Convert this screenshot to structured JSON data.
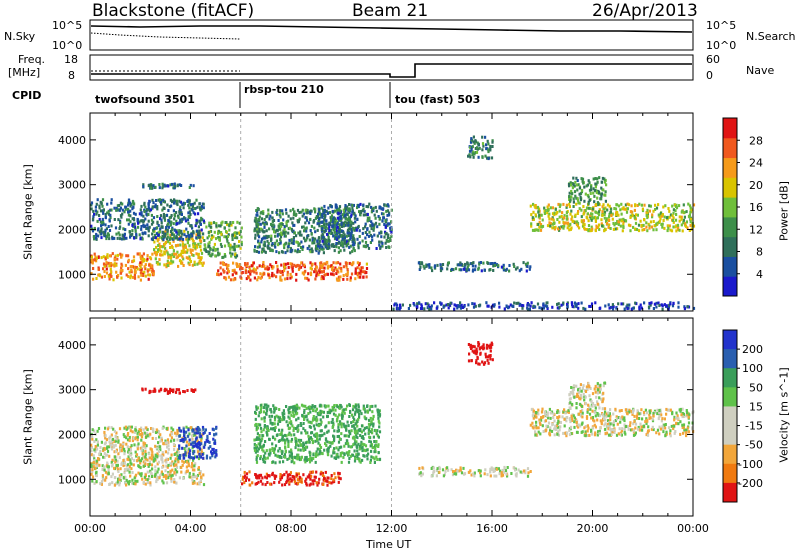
{
  "header": {
    "station": "Blackstone (fitACF)",
    "beam": "Beam 21",
    "date": "26/Apr/2013"
  },
  "panels": {
    "nsky_label": "N.Sky",
    "nsearch_label": "N.Search",
    "noise_ticks_left": [
      "10^5",
      "10^0"
    ],
    "noise_ticks_right": [
      "10^5",
      "10^0"
    ],
    "freq_label": "Freq.",
    "freq_unit": "[MHz]",
    "freq_ticks": [
      "18",
      "8"
    ],
    "nave_label": "Nave",
    "nave_ticks": [
      "60",
      "0"
    ],
    "cpid_label": "CPID"
  },
  "cpid": [
    {
      "label": "twofsound 3501",
      "start_h": 0.0,
      "end_h": 6.0
    },
    {
      "label": "rbsp-tou 210",
      "start_h": 6.0,
      "end_h": 12.0
    },
    {
      "label": "tou (fast) 503",
      "start_h": 12.0,
      "end_h": 24.0
    }
  ],
  "colors": {
    "power_scale": [
      "#1a1acc",
      "#1a4fa0",
      "#2f6f5a",
      "#3d8f4a",
      "#6fbf3a",
      "#d9c400",
      "#f59a1a",
      "#f0581e",
      "#e01414"
    ],
    "velocity_scale": [
      "#e01414",
      "#f07a10",
      "#f2a63a",
      "#cfcfc0",
      "#cfcfc0",
      "#5fc24a",
      "#3a9e5a",
      "#2a5fb0",
      "#2233cc"
    ]
  },
  "chart_data": [
    {
      "type": "heatmap",
      "title": "Power",
      "ylabel": "Slant Range [km]",
      "y_ticks": [
        "1000",
        "2000",
        "3000",
        "4000"
      ],
      "y_range": [
        180,
        4600
      ],
      "x_range": [
        0,
        24
      ],
      "colorbar_label": "Power [dB]",
      "colorbar_ticks": [
        "4",
        "8",
        "12",
        "16",
        "20",
        "24",
        "28"
      ],
      "colorbar_range": [
        0,
        32
      ],
      "regions": [
        {
          "t": [
            0.0,
            2.5
          ],
          "r": [
            900,
            1500
          ],
          "value": 24
        },
        {
          "t": [
            2.5,
            4.5
          ],
          "r": [
            1200,
            2000
          ],
          "value": 20
        },
        {
          "t": [
            4.5,
            6.0
          ],
          "r": [
            1400,
            2200
          ],
          "value": 14
        },
        {
          "t": [
            0.0,
            4.5
          ],
          "r": [
            1800,
            2700
          ],
          "value": 8
        },
        {
          "t": [
            2.0,
            4.2
          ],
          "r": [
            2950,
            3050
          ],
          "value": 8
        },
        {
          "t": [
            5.0,
            11.0
          ],
          "r": [
            900,
            1300
          ],
          "value": 26
        },
        {
          "t": [
            6.5,
            10.5
          ],
          "r": [
            1500,
            2500
          ],
          "value": 10
        },
        {
          "t": [
            9.0,
            12.0
          ],
          "r": [
            1600,
            2600
          ],
          "value": 8
        },
        {
          "t": [
            13.0,
            17.5
          ],
          "r": [
            1100,
            1300
          ],
          "value": 8
        },
        {
          "t": [
            15.0,
            16.0
          ],
          "r": [
            3600,
            4100
          ],
          "value": 10
        },
        {
          "t": [
            17.5,
            24.0
          ],
          "r": [
            2000,
            2600
          ],
          "value": 18
        },
        {
          "t": [
            19.0,
            20.5
          ],
          "r": [
            2600,
            3200
          ],
          "value": 12
        },
        {
          "t": [
            12.0,
            24.0
          ],
          "r": [
            250,
            400
          ],
          "value": 4
        }
      ]
    },
    {
      "type": "heatmap",
      "title": "Velocity",
      "ylabel": "Slant Range [km]",
      "xlabel": "Time UT",
      "x_ticks": [
        "00:00",
        "04:00",
        "08:00",
        "12:00",
        "16:00",
        "20:00",
        "00:00"
      ],
      "y_ticks": [
        "1000",
        "2000",
        "3000",
        "4000"
      ],
      "y_range": [
        180,
        4600
      ],
      "x_range": [
        0,
        24
      ],
      "colorbar_label": "Velocity [m s^-1]",
      "colorbar_ticks": [
        "200",
        "100",
        "50",
        "15",
        "-15",
        "-50",
        "-100",
        "-200"
      ],
      "regions": [
        {
          "t": [
            0.0,
            4.5
          ],
          "r": [
            900,
            2200
          ],
          "value": 0
        },
        {
          "t": [
            3.5,
            5.0
          ],
          "r": [
            1500,
            2200
          ],
          "value": 200
        },
        {
          "t": [
            6.0,
            10.0
          ],
          "r": [
            900,
            1200
          ],
          "value": -120
        },
        {
          "t": [
            6.5,
            11.5
          ],
          "r": [
            1400,
            2700
          ],
          "value": 60
        },
        {
          "t": [
            13.0,
            17.5
          ],
          "r": [
            1100,
            1300
          ],
          "value": 0
        },
        {
          "t": [
            15.0,
            16.0
          ],
          "r": [
            3600,
            4100
          ],
          "value": -200
        },
        {
          "t": [
            17.5,
            24.0
          ],
          "r": [
            2000,
            2600
          ],
          "value": 0
        },
        {
          "t": [
            19.0,
            20.5
          ],
          "r": [
            2600,
            3200
          ],
          "value": 0
        },
        {
          "t": [
            2.0,
            4.2
          ],
          "r": [
            2950,
            3050
          ],
          "value": -150
        }
      ]
    }
  ]
}
